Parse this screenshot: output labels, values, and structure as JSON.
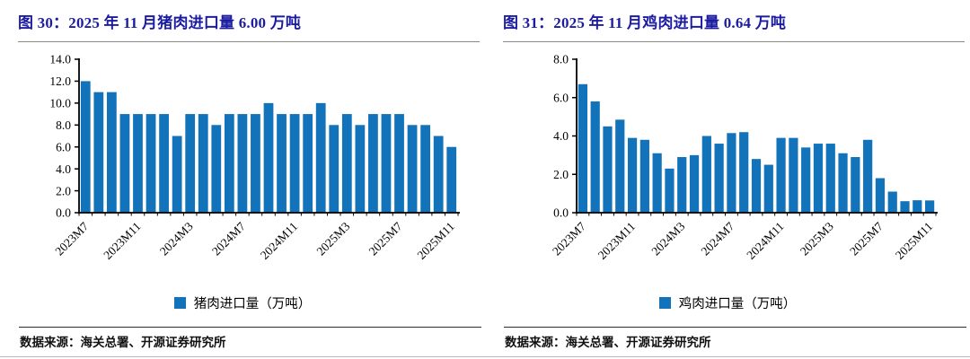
{
  "page": {
    "title_color": "#1c1ca0",
    "bar_color": "#1273ba",
    "rule_color": "#8a8a8a"
  },
  "figures": [
    {
      "title": "图 30：2025 年 11 月猪肉进口量 6.00 万吨",
      "legend_label": "猪肉进口量（万吨）",
      "source_label": "数据来源：海关总署、开源证券研究所",
      "chart_data": {
        "type": "bar",
        "title": "2025 年 11 月猪肉进口量 6.00 万吨",
        "legend": "猪肉进口量（万吨）",
        "legend_position": "bottom",
        "grid": false,
        "bar_color": "#1273ba",
        "ylim": [
          0,
          14
        ],
        "ytick_step": 2,
        "ytick_labels": [
          "0.0",
          "2.0",
          "4.0",
          "6.0",
          "8.0",
          "10.0",
          "12.0",
          "14.0"
        ],
        "categories": [
          "2023M7",
          "2023M8",
          "2023M9",
          "2023M10",
          "2023M11",
          "2023M12",
          "2024M1",
          "2024M2",
          "2024M3",
          "2024M4",
          "2024M5",
          "2024M6",
          "2024M7",
          "2024M8",
          "2024M9",
          "2024M10",
          "2024M11",
          "2024M12",
          "2025M1",
          "2025M2",
          "2025M3",
          "2025M4",
          "2025M5",
          "2025M6",
          "2025M7",
          "2025M8",
          "2025M9",
          "2025M10",
          "2025M11"
        ],
        "values": [
          12.0,
          11.0,
          11.0,
          9.0,
          9.0,
          9.0,
          9.0,
          7.0,
          9.0,
          9.0,
          8.0,
          9.0,
          9.0,
          9.0,
          10.0,
          9.0,
          9.0,
          9.0,
          10.0,
          8.0,
          9.0,
          8.0,
          9.0,
          9.0,
          9.0,
          8.0,
          8.0,
          7.0,
          6.0
        ],
        "xtick_shown": [
          "2023M7",
          "2023M11",
          "2024M3",
          "2024M7",
          "2024M11",
          "2025M3",
          "2025M7",
          "2025M11"
        ],
        "xtick_indices": [
          0,
          4,
          8,
          12,
          16,
          20,
          24,
          28
        ]
      }
    },
    {
      "title": "图 31：2025 年 11 月鸡肉进口量 0.64 万吨",
      "legend_label": "鸡肉进口量（万吨）",
      "source_label": "数据来源：海关总署、开源证券研究所",
      "chart_data": {
        "type": "bar",
        "title": "2025 年 11 月鸡肉进口量 0.64 万吨",
        "legend": "鸡肉进口量（万吨）",
        "legend_position": "bottom",
        "grid": false,
        "bar_color": "#1273ba",
        "ylim": [
          0,
          8
        ],
        "ytick_step": 2,
        "ytick_labels": [
          "0.0",
          "2.0",
          "4.0",
          "6.0",
          "8.0"
        ],
        "categories": [
          "2023M7",
          "2023M8",
          "2023M9",
          "2023M10",
          "2023M11",
          "2023M12",
          "2024M1",
          "2024M2",
          "2024M3",
          "2024M4",
          "2024M5",
          "2024M6",
          "2024M7",
          "2024M8",
          "2024M9",
          "2024M10",
          "2024M11",
          "2024M12",
          "2025M1",
          "2025M2",
          "2025M3",
          "2025M4",
          "2025M5",
          "2025M6",
          "2025M7",
          "2025M8",
          "2025M9",
          "2025M10",
          "2025M11"
        ],
        "values": [
          6.7,
          5.8,
          4.5,
          4.85,
          3.9,
          3.8,
          3.1,
          2.3,
          2.9,
          3.0,
          4.0,
          3.6,
          4.15,
          4.2,
          2.8,
          2.5,
          3.9,
          3.9,
          3.4,
          3.6,
          3.6,
          3.1,
          2.9,
          3.8,
          1.8,
          1.1,
          0.6,
          0.65,
          0.64
        ],
        "xtick_shown": [
          "2023M7",
          "2023M11",
          "2024M3",
          "2024M7",
          "2024M11",
          "2025M3",
          "2025M7",
          "2025M11"
        ],
        "xtick_indices": [
          0,
          4,
          8,
          12,
          16,
          20,
          24,
          28
        ]
      }
    }
  ]
}
